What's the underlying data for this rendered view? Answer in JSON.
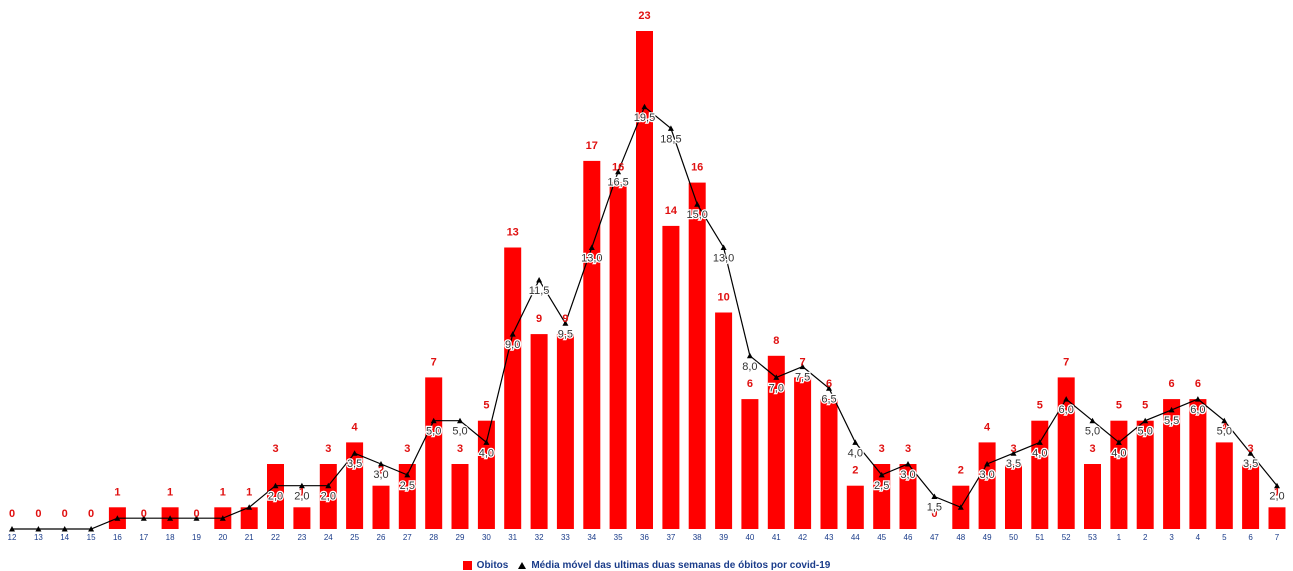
{
  "colors": {
    "bar": "#ff0000",
    "line": "#000000",
    "tick": "#1a3c8a",
    "legend_text": "#1a3c8a",
    "bar_label": "#e01010",
    "line_label": "#333333"
  },
  "chart_data": {
    "type": "bar",
    "categories": [
      "12",
      "13",
      "14",
      "15",
      "16",
      "17",
      "18",
      "19",
      "20",
      "21",
      "22",
      "23",
      "24",
      "25",
      "26",
      "27",
      "28",
      "29",
      "30",
      "31",
      "32",
      "33",
      "34",
      "35",
      "36",
      "37",
      "38",
      "39",
      "40",
      "41",
      "42",
      "43",
      "44",
      "45",
      "46",
      "47",
      "48",
      "49",
      "50",
      "51",
      "52",
      "53",
      "1",
      "2",
      "3",
      "4",
      "5",
      "6",
      "7"
    ],
    "series": [
      {
        "name": "Obitos",
        "kind": "bar",
        "values": [
          0,
          0,
          0,
          0,
          1,
          0,
          1,
          0,
          1,
          1,
          3,
          1,
          3,
          4,
          2,
          3,
          7,
          3,
          5,
          13,
          9,
          9,
          17,
          16,
          23,
          14,
          16,
          10,
          6,
          8,
          7,
          6,
          2,
          3,
          3,
          0,
          2,
          4,
          3,
          5,
          7,
          3,
          5,
          5,
          6,
          6,
          4,
          3,
          1
        ],
        "labels": [
          "0",
          "0",
          "0",
          "0",
          "1",
          "0",
          "1",
          "0",
          "1",
          "1",
          "3",
          "1",
          "3",
          "4",
          "2",
          "3",
          "7",
          "3",
          "5",
          "13",
          "9",
          "9",
          "17",
          "16",
          "23",
          "14",
          "16",
          "10",
          "6",
          "8",
          "7",
          "6",
          "2",
          "3",
          "3",
          "0",
          "2",
          "4",
          "3",
          "5",
          "7",
          "3",
          "5",
          "5",
          "6",
          "6",
          "4",
          "3",
          "1"
        ]
      },
      {
        "name": "Média móvel das ultimas duas semanas de óbitos por covid-19",
        "kind": "line",
        "values": [
          0,
          0,
          0,
          0,
          0.5,
          0.5,
          0.5,
          0.5,
          0.5,
          1.0,
          2.0,
          2.0,
          2.0,
          3.5,
          3.0,
          2.5,
          5.0,
          5.0,
          4.0,
          9.0,
          11.5,
          9.5,
          13.0,
          16.5,
          19.5,
          18.5,
          15.0,
          13.0,
          8.0,
          7.0,
          7.5,
          6.5,
          4.0,
          2.5,
          3.0,
          1.5,
          1.0,
          3.0,
          3.5,
          4.0,
          6.0,
          5.0,
          4.0,
          5.0,
          5.5,
          6.0,
          5.0,
          3.5,
          2.0
        ],
        "labels": [
          null,
          null,
          null,
          null,
          null,
          null,
          null,
          null,
          null,
          null,
          "2,0",
          "2,0",
          "2,0",
          "3,5",
          "3,0",
          "2,5",
          "5,0",
          "5,0",
          "4,0",
          "9,0",
          "11,5",
          "9,5",
          "13,0",
          "16,5",
          "19,5",
          "18,5",
          "15,0",
          "13,0",
          "8,0",
          "7,0",
          "7,5",
          "6,5",
          "4,0",
          "2,5",
          "3,0",
          "1,5",
          null,
          "3,0",
          "3,5",
          "4,0",
          "6,0",
          "5,0",
          "4,0",
          "5,0",
          "5,5",
          "6,0",
          "5,0",
          "3,5",
          "2,0"
        ]
      }
    ],
    "ylim": [
      0,
      24
    ],
    "grid": false,
    "legend": "bottom-center",
    "xlabel": "",
    "ylabel": ""
  }
}
